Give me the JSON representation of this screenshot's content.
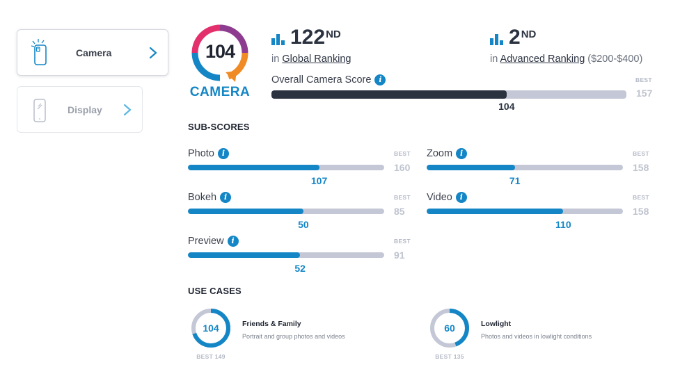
{
  "sidebar": {
    "tabs": [
      {
        "label": "Camera",
        "active": true
      },
      {
        "label": "Display",
        "active": false
      }
    ]
  },
  "badge": {
    "score": "104",
    "label": "CAMERA"
  },
  "rankings": {
    "global": {
      "number": "122",
      "suffix": "ND",
      "prefix": "in",
      "link": "Global Ranking",
      "extra": ""
    },
    "advanced": {
      "number": "2",
      "suffix": "ND",
      "prefix": "in",
      "link": "Advanced Ranking",
      "extra": "($200-$400)"
    }
  },
  "overall": {
    "label": "Overall Camera Score",
    "score": 104,
    "best": 157,
    "best_label": "BEST"
  },
  "subscores": {
    "title": "SUB-SCORES",
    "best_label": "BEST",
    "items": [
      {
        "label": "Photo",
        "score": 107,
        "best": 160
      },
      {
        "label": "Zoom",
        "score": 71,
        "best": 158
      },
      {
        "label": "Bokeh",
        "score": 50,
        "best": 85
      },
      {
        "label": "Video",
        "score": 110,
        "best": 158
      },
      {
        "label": "Preview",
        "score": 52,
        "best": 91
      }
    ]
  },
  "usecases": {
    "title": "USE CASES",
    "items": [
      {
        "score": 104,
        "best": 149,
        "best_text": "BEST 149",
        "title": "Friends & Family",
        "desc": "Portrait and group photos and videos"
      },
      {
        "score": 60,
        "best": 135,
        "best_text": "BEST 135",
        "title": "Lowlight",
        "desc": "Photos and videos in lowlight conditions"
      }
    ]
  },
  "colors": {
    "accent": "#1486c6",
    "dark": "#2b3240",
    "track": "#c4c8d6"
  }
}
